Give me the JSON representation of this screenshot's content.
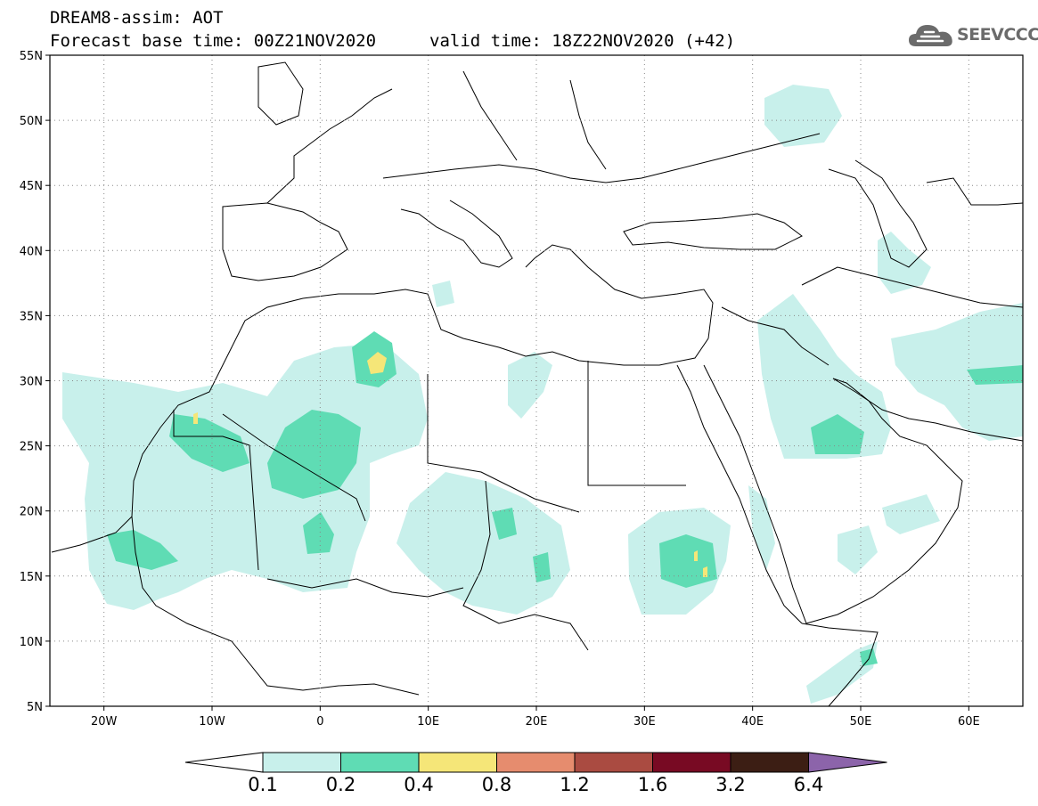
{
  "title": {
    "line1": "DREAM8-assim: AOT",
    "base_time": "Forecast base time: 00Z21NOV2020",
    "valid_time": "valid time: 18Z22NOV2020 (+42)"
  },
  "logo": {
    "text": "SEEVCCC",
    "icon": "cloud-logo-icon"
  },
  "map": {
    "lat_labels": [
      "55N",
      "50N",
      "45N",
      "40N",
      "35N",
      "30N",
      "25N",
      "20N",
      "15N",
      "10N",
      "5N"
    ],
    "lon_labels": [
      "20W",
      "10W",
      "0",
      "10E",
      "20E",
      "30E",
      "40E",
      "50E",
      "60E"
    ],
    "lat_range": [
      5,
      55
    ],
    "lon_range": [
      -25,
      65
    ],
    "grid": "dotted"
  },
  "colorbar": {
    "labels": [
      "0.1",
      "0.2",
      "0.4",
      "0.8",
      "1.2",
      "1.6",
      "3.2",
      "6.4"
    ],
    "colors": [
      "#c8f0eb",
      "#5fdcb4",
      "#f5e678",
      "#e68c6e",
      "#aa4b41",
      "#780a23",
      "#3c1e14",
      "#8c64aa"
    ],
    "extend": "both"
  },
  "colors": {
    "level1": "#c8f0eb",
    "level2": "#5fdcb4",
    "level3": "#f5e678"
  }
}
